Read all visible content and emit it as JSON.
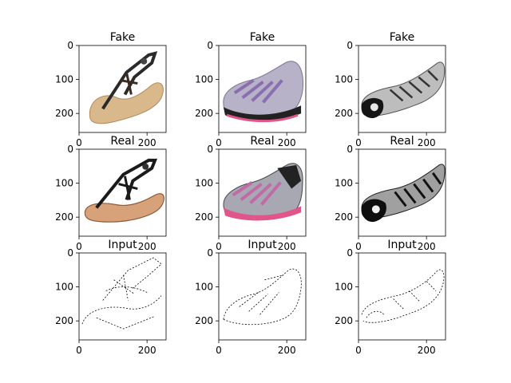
{
  "figure": {
    "panels": [
      {
        "title": "Fake",
        "image": "sandal-photo",
        "xticks": [
          "0",
          "200"
        ],
        "yticks": [
          "0",
          "100",
          "200"
        ]
      },
      {
        "title": "Fake",
        "image": "sneaker-photo",
        "xticks": [
          "0",
          "200"
        ],
        "yticks": [
          "0",
          "100",
          "200"
        ]
      },
      {
        "title": "Fake",
        "image": "flat-shoe-photo",
        "xticks": [
          "0",
          "200"
        ],
        "yticks": [
          "0",
          "100",
          "200"
        ]
      },
      {
        "title": "Real",
        "image": "sandal-photo",
        "xticks": [
          "0",
          "200"
        ],
        "yticks": [
          "0",
          "100",
          "200"
        ]
      },
      {
        "title": "Real",
        "image": "sneaker-photo",
        "xticks": [
          "0",
          "200"
        ],
        "yticks": [
          "0",
          "100",
          "200"
        ]
      },
      {
        "title": "Real",
        "image": "flat-shoe-photo",
        "xticks": [
          "0",
          "200"
        ],
        "yticks": [
          "0",
          "100",
          "200"
        ]
      },
      {
        "title": "Input",
        "image": "sandal-edge-sketch",
        "xticks": [
          "0",
          "200"
        ],
        "yticks": [
          "0",
          "100",
          "200"
        ]
      },
      {
        "title": "Input",
        "image": "sneaker-edge-sketch",
        "xticks": [
          "0",
          "200"
        ],
        "yticks": [
          "0",
          "100",
          "200"
        ]
      },
      {
        "title": "Input",
        "image": "flat-shoe-edge-sketch",
        "xticks": [
          "0",
          "200"
        ],
        "yticks": [
          "0",
          "100",
          "200"
        ]
      }
    ]
  },
  "colors": {
    "sandal_sole_fake": "#d9b98c",
    "sandal_sole_real": "#d7a27a",
    "sandal_strap": "#2a2a2a",
    "sneaker_body": "#b7b2c8",
    "sneaker_purple": "#8a6fb0",
    "sneaker_pink": "#e0558a",
    "sneaker_black": "#222222",
    "flat_body": "#9a9a9a",
    "flat_black": "#151515",
    "sketch_line": "#000000"
  }
}
